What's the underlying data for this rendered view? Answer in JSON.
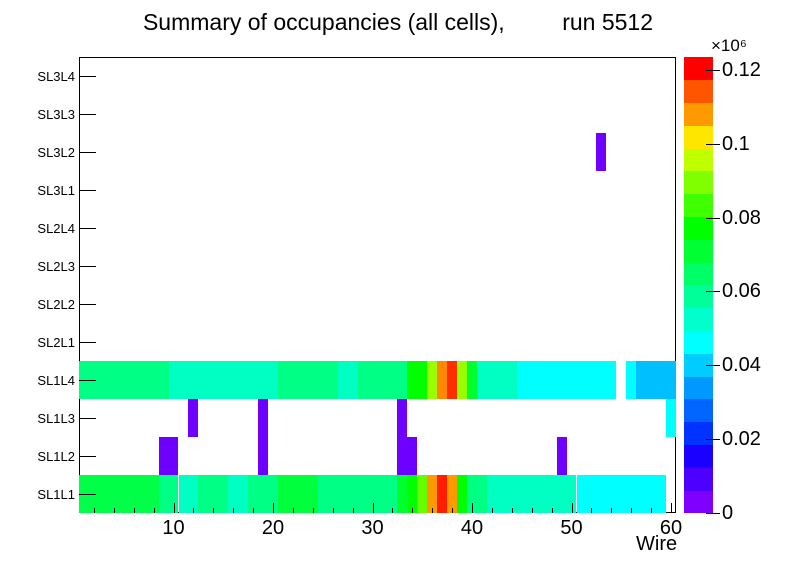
{
  "chart_data": {
    "type": "heatmap",
    "title": "Summary of occupancies (all cells),         run 5512",
    "xlabel": "Wire",
    "x_range": [
      0.5,
      60.5
    ],
    "x_major_ticks": [
      10,
      20,
      30,
      40,
      50,
      60
    ],
    "x_minor_tick_step": 2,
    "rows_top_to_bottom": [
      "SL3L4",
      "SL3L3",
      "SL3L2",
      "SL3L1",
      "SL2L4",
      "SL2L3",
      "SL2L2",
      "SL2L1",
      "SL1L4",
      "SL1L3",
      "SL1L2",
      "SL1L1"
    ],
    "cells": {
      "SL3L4": [],
      "SL3L3": [],
      "SL3L2": [
        [
          53,
          53,
          "#6D00FF"
        ]
      ],
      "SL3L1": [],
      "SL2L4": [],
      "SL2L3": [],
      "SL2L2": [],
      "SL2L1": [],
      "SL1L4": [
        [
          1,
          9,
          "#00FF85"
        ],
        [
          10,
          20,
          "#00FFC2"
        ],
        [
          21,
          26,
          "#00FF85"
        ],
        [
          27,
          28,
          "#00FFC2"
        ],
        [
          29,
          33,
          "#00FF85"
        ],
        [
          34,
          35,
          "#00FF00"
        ],
        [
          36,
          36,
          "#99FF00"
        ],
        [
          37,
          37,
          "#FF8800"
        ],
        [
          38,
          38,
          "#FF2E00"
        ],
        [
          39,
          39,
          "#99FF00"
        ],
        [
          40,
          40,
          "#00FF2E"
        ],
        [
          41,
          44,
          "#00FFC2"
        ],
        [
          45,
          54,
          "#00FFFF"
        ],
        [
          56,
          56,
          "#00FFFF"
        ],
        [
          57,
          60,
          "#00BFFF"
        ]
      ],
      "SL1L3": [
        [
          12,
          12,
          "#6D00FF"
        ],
        [
          19,
          19,
          "#6D00FF"
        ],
        [
          33,
          33,
          "#6D00FF"
        ],
        [
          60,
          60,
          "#00FFFF"
        ]
      ],
      "SL1L2": [
        [
          9,
          10,
          "#6D00FF"
        ],
        [
          19,
          19,
          "#6D00FF"
        ],
        [
          33,
          34,
          "#6D00FF"
        ],
        [
          49,
          49,
          "#6D00FF"
        ]
      ],
      "SL1L1": [
        [
          1,
          8,
          "#00FF47"
        ],
        [
          9,
          10,
          "#00FF85"
        ],
        [
          11,
          12,
          "#00FFC2"
        ],
        [
          13,
          15,
          "#00FF85"
        ],
        [
          16,
          17,
          "#00FFC2"
        ],
        [
          18,
          20,
          "#00FF85"
        ],
        [
          21,
          24,
          "#00FF3D"
        ],
        [
          25,
          32,
          "#00FF85"
        ],
        [
          33,
          33,
          "#00FF2E"
        ],
        [
          34,
          34,
          "#00FF00"
        ],
        [
          35,
          35,
          "#66FF00"
        ],
        [
          36,
          36,
          "#FF9900"
        ],
        [
          37,
          37,
          "#FF1E00"
        ],
        [
          38,
          38,
          "#FF9900"
        ],
        [
          39,
          39,
          "#00FF00"
        ],
        [
          40,
          41,
          "#00FF85"
        ],
        [
          42,
          50,
          "#00FFC2"
        ],
        [
          51,
          59,
          "#00FFFF"
        ]
      ]
    },
    "colorbar": {
      "exponent_label": "×10⁶",
      "max_value": 0.1235,
      "tick_labels": [
        "0",
        "0.02",
        "0.04",
        "0.06",
        "0.08",
        "0.1",
        "0.12"
      ],
      "tick_values": [
        0,
        0.02,
        0.04,
        0.06,
        0.08,
        0.1,
        0.12
      ],
      "colors_bottom_to_top": [
        "#8000FF",
        "#4C00FF",
        "#1900FF",
        "#0033FF",
        "#0066FF",
        "#0099FF",
        "#00CCFF",
        "#00FFFF",
        "#00FFCC",
        "#00FF99",
        "#00FF66",
        "#00FF33",
        "#00FF00",
        "#40FF00",
        "#80FF00",
        "#BFFF00",
        "#FFE600",
        "#FF9900",
        "#FF5500",
        "#FF0000"
      ]
    }
  }
}
